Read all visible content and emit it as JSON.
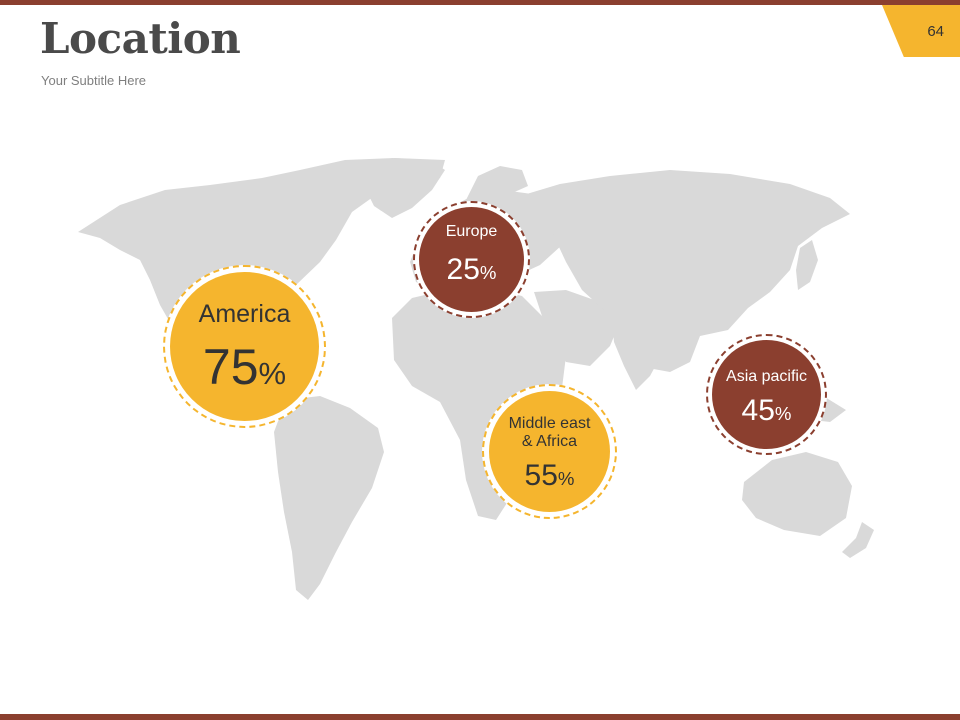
{
  "header": {
    "title": "Location",
    "subtitle": "Your Subtitle Here",
    "page_number": "64"
  },
  "colors": {
    "accent_brown": "#8B3F2F",
    "accent_yellow": "#F5B52E",
    "map_gray": "#D9D9D9",
    "title_text": "#4A4A4A",
    "subtitle_text": "#7F7F7F"
  },
  "regions": [
    {
      "name": "America",
      "value": "75",
      "unit": "%"
    },
    {
      "name": "Europe",
      "value": "25",
      "unit": "%"
    },
    {
      "name": "Middle east & Africa",
      "value": "55",
      "unit": "%"
    },
    {
      "name": "Asia pacific",
      "value": "45",
      "unit": "%"
    }
  ]
}
